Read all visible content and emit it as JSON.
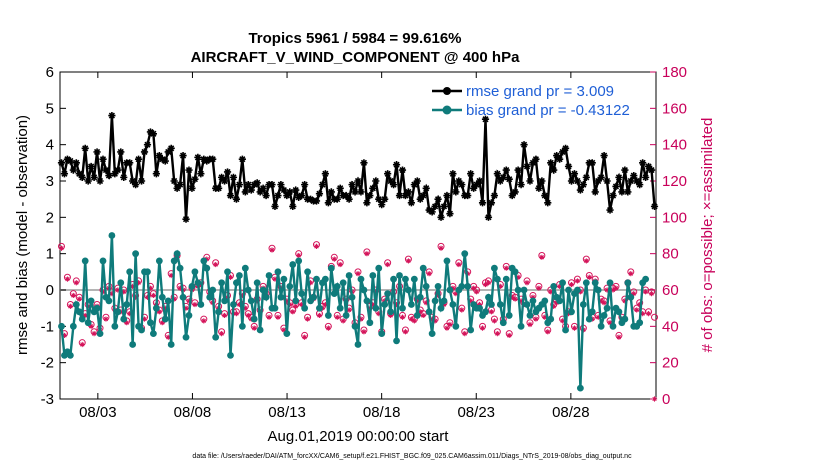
{
  "chart_data": {
    "type": "line",
    "title": "Tropics 5961 / 5984 = 99.616%",
    "subtitle": "AIRCRAFT_V_WIND_COMPONENT @ 400 hPa",
    "xlabel": "Aug.01,2019 00:00:00 start",
    "ylabel": "rmse and bias (model - observation)",
    "y2label": "# of obs: o=possible; ×=assimilated",
    "footnote": "data file: /Users/raeder/DAI/ATM_forcXX/CAM6_setup/f.e21.FHIST_BGC.f09_025.CAM6assim.011/Diags_NTrS_2019-08/obs_diag_output.nc",
    "ylim": [
      -3,
      6
    ],
    "y2lim": [
      0,
      180
    ],
    "yticks": [
      "-3",
      "-2",
      "-1",
      "0",
      "1",
      "2",
      "3",
      "4",
      "5",
      "6"
    ],
    "y2ticks": [
      "0",
      "20",
      "40",
      "60",
      "80",
      "100",
      "120",
      "140",
      "160",
      "180"
    ],
    "xlim": [
      1,
      32.5
    ],
    "xticks": [
      {
        "day": 3,
        "label": "08/03"
      },
      {
        "day": 8,
        "label": "08/08"
      },
      {
        "day": 13,
        "label": "08/13"
      },
      {
        "day": 18,
        "label": "08/18"
      },
      {
        "day": 23,
        "label": "08/23"
      },
      {
        "day": 28,
        "label": "08/28"
      }
    ],
    "legend": {
      "position": "top-right",
      "rmse": "rmse grand pr = 3.009",
      "bias": "bias grand pr = -0.43122"
    },
    "colors": {
      "rmse": "#000000",
      "bias": "#0f7b7b",
      "obs": "#d4145a",
      "zero": "#b4b4b4"
    },
    "series": [
      {
        "name": "rmse",
        "values": [
          3.5,
          3.2,
          3.6,
          3.55,
          3.3,
          3.5,
          3.2,
          3.1,
          3.9,
          3.0,
          3.4,
          3.1,
          3.8,
          3.0,
          3.6,
          3.3,
          3.15,
          4.8,
          3.2,
          3.3,
          3.8,
          3.1,
          3.5,
          3.5,
          3.0,
          2.9,
          3.6,
          3.0,
          3.8,
          4.0,
          4.35,
          4.3,
          3.2,
          3.7,
          3.6,
          3.55,
          3.8,
          3.9,
          3.0,
          2.8,
          2.9,
          3.7,
          1.95,
          3.3,
          2.8,
          3.05,
          3.65,
          3.2,
          3.6,
          3.55,
          3.6,
          3.6,
          2.8,
          2.8,
          3.1,
          3.0,
          3.25,
          2.6,
          3.1,
          2.5,
          2.9,
          3.6,
          2.7,
          2.9,
          2.75,
          2.9,
          2.95,
          2.7,
          2.8,
          2.6,
          2.9,
          2.9,
          2.3,
          2.6,
          2.9,
          2.75,
          2.6,
          2.7,
          2.3,
          2.75,
          2.55,
          2.6,
          2.9,
          2.5,
          2.5,
          2.45,
          2.45,
          2.65,
          2.9,
          3.2,
          2.4,
          2.7,
          2.5,
          2.5,
          2.8,
          2.6,
          2.6,
          2.5,
          2.9,
          2.7,
          3.0,
          2.7,
          3.5,
          2.4,
          2.6,
          2.8,
          3.0,
          2.5,
          2.35,
          2.5,
          3.2,
          3.0,
          2.9,
          3.45,
          2.6,
          3.3,
          2.6,
          2.7,
          2.4,
          2.9,
          3.0,
          2.5,
          2.6,
          2.8,
          2.2,
          2.15,
          2.3,
          2.5,
          2.0,
          2.3,
          2.6,
          2.1,
          3.2,
          2.7,
          3.0,
          2.9,
          2.6,
          2.6,
          3.2,
          2.8,
          2.9,
          3.0,
          2.4,
          4.7,
          2.0,
          2.4,
          2.6,
          3.2,
          3.0,
          3.1,
          3.3,
          3.05,
          2.6,
          2.7,
          3.3,
          2.9,
          4.0,
          3.4,
          3.0,
          3.5,
          3.6,
          2.8,
          3.0,
          2.6,
          2.4,
          3.5,
          3.3,
          3.7,
          3.6,
          3.8,
          3.9,
          3.4,
          3.0,
          3.2,
          3.0,
          2.75,
          2.9,
          3.1,
          3.5,
          3.5,
          2.7,
          3.0,
          3.1,
          3.7,
          3.0,
          2.2,
          2.6,
          2.85,
          3.1,
          2.7,
          3.3,
          2.7,
          3.0,
          3.15,
          3.0,
          2.9,
          3.5,
          3.1,
          3.4,
          3.3,
          2.3
        ]
      },
      {
        "name": "bias",
        "values": [
          -1.0,
          -1.8,
          -1.7,
          -1.8,
          -1.0,
          -0.4,
          -0.6,
          -0.8,
          0.8,
          -0.9,
          -0.3,
          -0.6,
          -0.5,
          -1.2,
          0.8,
          -0.2,
          -0.3,
          1.5,
          -1.0,
          -0.6,
          0.2,
          -0.8,
          -0.4,
          0.5,
          -1.5,
          1.0,
          -1.0,
          -1.1,
          0.5,
          0.5,
          -0.9,
          -1.2,
          -0.5,
          0.8,
          -0.2,
          -0.8,
          -0.3,
          -1.5,
          0.8,
          1.0,
          0.6,
          -0.2,
          -1.3,
          -0.7,
          0.1,
          0.5,
          0.2,
          -0.4,
          0.8,
          0.6,
          -0.2,
          0.0,
          -1.3,
          -0.6,
          0.2,
          -0.3,
          0.5,
          -1.8,
          -0.4,
          0.2,
          0.4,
          -1.0,
          0.6,
          0.0,
          -0.3,
          -0.8,
          0.2,
          -1.1,
          0.0,
          -0.2,
          0.4,
          -0.5,
          -0.5,
          0.5,
          -0.2,
          0.3,
          -1.2,
          0.1,
          0.7,
          -0.3,
          0.8,
          -0.1,
          -0.5,
          0.5,
          -0.3,
          -0.2,
          0.3,
          -0.5,
          0.2,
          0.3,
          -0.7,
          0.6,
          -0.1,
          0.1,
          -0.5,
          0.2,
          -0.7,
          0.4,
          -0.2,
          -1.0,
          -1.5,
          0.3,
          0.0,
          -0.3,
          -0.9,
          0.4,
          -0.5,
          0.6,
          -1.2,
          -0.4,
          -0.1,
          -0.6,
          0.3,
          -1.4,
          0.4,
          -0.5,
          0.3,
          0.0,
          -0.4,
          0.3,
          -0.7,
          -0.2,
          0.6,
          0.1,
          -0.6,
          -1.2,
          -0.3,
          0.1,
          -0.5,
          -0.3,
          0.8,
          0.0,
          -0.4,
          -1.0,
          0.0,
          0.1,
          1.0,
          0.1,
          -1.1,
          -0.4,
          -0.5,
          -0.5,
          -0.7,
          -0.6,
          -0.2,
          -0.4,
          0.6,
          0.3,
          -0.4,
          -0.9,
          0.3,
          -0.7,
          0.6,
          0.5,
          0.0,
          -1.0,
          0.0,
          -0.4,
          -0.7,
          -0.3,
          -0.6,
          -0.5,
          -0.4,
          -0.3,
          -0.9,
          -0.8,
          0.1,
          -0.2,
          -0.3,
          0.2,
          -1.1,
          0.0,
          -0.6,
          -0.1,
          0.0,
          -2.7,
          -0.4,
          0.2,
          -0.8,
          -0.6,
          0.2,
          0.0,
          -1.0,
          -0.7,
          -0.5,
          0.2,
          -1.0,
          -0.5,
          -0.6,
          -0.9,
          -0.8,
          0.2,
          -0.2,
          -1.0,
          -1.0,
          -0.9,
          0.2,
          0.3
        ]
      },
      {
        "name": "obs_possible",
        "values": [
          84,
          36,
          67,
          52,
          58,
          65,
          56,
          31,
          47,
          52,
          41,
          37,
          52,
          39,
          60,
          45,
          62,
          59,
          50,
          61,
          49,
          60,
          43,
          48,
          63,
          57,
          65,
          39,
          45,
          57,
          62,
          58,
          53,
          49,
          43,
          51,
          35,
          69,
          56,
          79,
          62,
          61,
          51,
          55,
          61,
          53,
          63,
          64,
          44,
          78,
          59,
          54,
          75,
          51,
          37,
          47,
          57,
          68,
          48,
          48,
          53,
          58,
          51,
          47,
          45,
          40,
          55,
          49,
          62,
          58,
          46,
          83,
          67,
          46,
          62,
          39,
          55,
          53,
          49,
          52,
          80,
          53,
          35,
          45,
          65,
          56,
          85,
          47,
          51,
          53,
          40,
          73,
          78,
          46,
          75,
          44,
          55,
          50,
          60,
          42,
          70,
          45,
          38,
          81,
          51,
          53,
          60,
          48,
          37,
          55,
          75,
          47,
          59,
          53,
          62,
          46,
          38,
          77,
          45,
          44,
          55,
          49,
          47,
          54,
          70,
          45,
          44,
          58,
          84,
          53,
          40,
          42,
          62,
          59,
          75,
          50,
          37,
          70,
          55,
          62,
          60,
          53,
          40,
          64,
          65,
          49,
          44,
          37,
          63,
          44,
          73,
          36,
          57,
          56,
          68,
          55,
          53,
          65,
          42,
          57,
          45,
          62,
          79,
          46,
          38,
          60,
          52,
          54,
          63,
          44,
          40,
          48,
          64,
          40,
          66,
          60,
          39,
          77,
          68,
          45,
          66,
          46,
          55,
          54,
          61,
          43,
          61,
          62,
          35,
          45,
          55,
          64,
          70,
          59,
          50,
          53,
          48,
          60,
          48,
          59,
          45
        ]
      },
      {
        "name": "obs_assimilated",
        "values": [
          83,
          35,
          66,
          51,
          57,
          64,
          55,
          30,
          46,
          51,
          40,
          36,
          51,
          38,
          59,
          44,
          61,
          58,
          49,
          60,
          48,
          59,
          42,
          47,
          62,
          56,
          64,
          38,
          44,
          56,
          61,
          57,
          52,
          48,
          42,
          50,
          34,
          68,
          55,
          78,
          61,
          60,
          50,
          54,
          60,
          52,
          62,
          63,
          43,
          77,
          58,
          53,
          74,
          50,
          36,
          46,
          56,
          67,
          47,
          47,
          52,
          57,
          50,
          46,
          44,
          39,
          54,
          48,
          61,
          57,
          45,
          82,
          66,
          45,
          61,
          38,
          54,
          52,
          48,
          51,
          79,
          52,
          34,
          44,
          64,
          55,
          84,
          46,
          50,
          52,
          39,
          72,
          77,
          45,
          74,
          43,
          54,
          49,
          59,
          41,
          69,
          44,
          37,
          80,
          50,
          52,
          59,
          47,
          36,
          54,
          74,
          46,
          58,
          52,
          61,
          45,
          37,
          76,
          44,
          43,
          54,
          48,
          46,
          53,
          69,
          44,
          43,
          57,
          83,
          52,
          39,
          41,
          61,
          58,
          74,
          49,
          36,
          69,
          54,
          61,
          59,
          52,
          39,
          63,
          64,
          48,
          43,
          36,
          62,
          43,
          72,
          35,
          56,
          55,
          67,
          54,
          52,
          64,
          41,
          56,
          44,
          61,
          78,
          45,
          37,
          59,
          51,
          53,
          62,
          43,
          39,
          47,
          63,
          39,
          65,
          59,
          38,
          76,
          67,
          44,
          65,
          45,
          54,
          53,
          60,
          42,
          60,
          61,
          34,
          44,
          54,
          63,
          69,
          58,
          49,
          52,
          47,
          59,
          47,
          58,
          0
        ]
      }
    ]
  }
}
